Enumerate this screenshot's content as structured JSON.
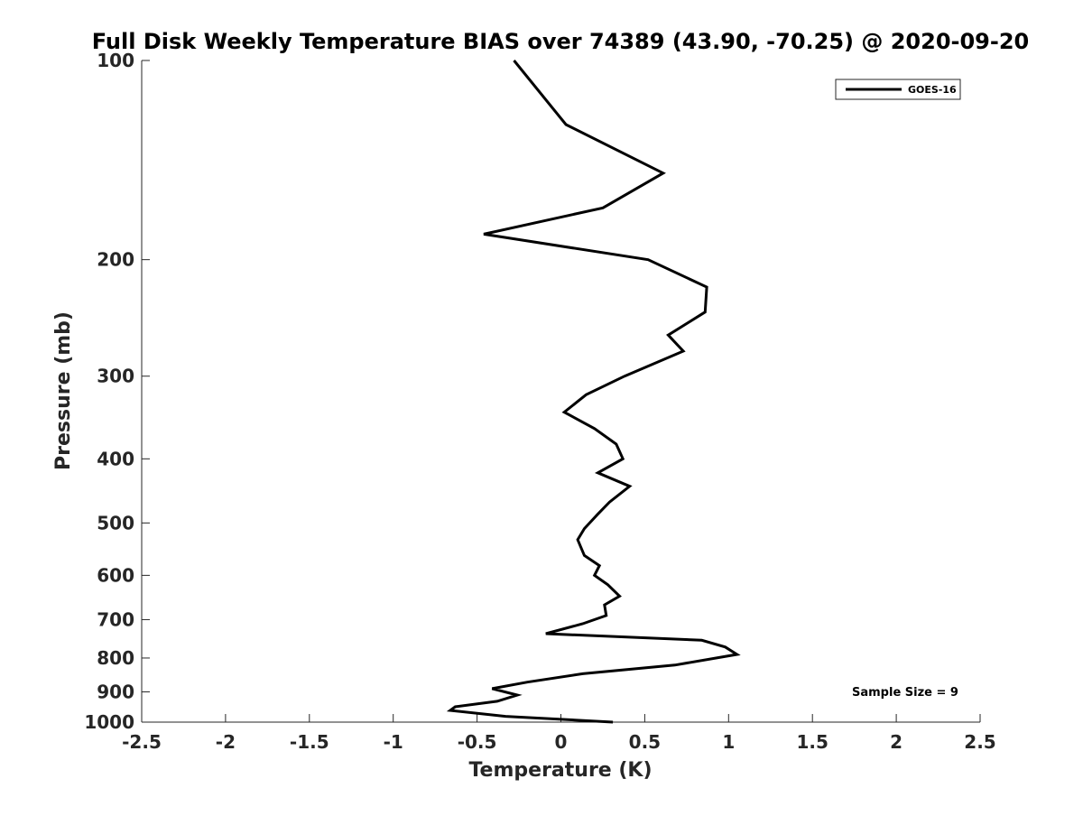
{
  "chart_data": {
    "type": "line",
    "title": "Full Disk Weekly Temperature BIAS over 74389 (43.90, -70.25) @ 2020-09-20",
    "xlabel": "Temperature (K)",
    "ylabel": "Pressure (mb)",
    "xlim": [
      -2.5,
      2.5
    ],
    "ylim": [
      100,
      1000
    ],
    "y_scale": "log",
    "y_reversed": true,
    "grid": false,
    "x_ticks": [
      -2.5,
      -2,
      -1.5,
      -1,
      -0.5,
      0,
      0.5,
      1,
      1.5,
      2,
      2.5
    ],
    "x_tick_labels": [
      "-2.5",
      "-2",
      "-1.5",
      "-1",
      "-0.5",
      "0",
      "0.5",
      "1",
      "1.5",
      "2",
      "2.5"
    ],
    "y_ticks": [
      100,
      200,
      300,
      400,
      500,
      600,
      700,
      800,
      900,
      1000
    ],
    "y_tick_labels": [
      "100",
      "200",
      "300",
      "400",
      "500",
      "600",
      "700",
      "800",
      "900",
      "1000"
    ],
    "legend": {
      "position": "top-right",
      "entries": [
        "GOES-16"
      ]
    },
    "annotation": "Sample Size = 9",
    "series": [
      {
        "name": "GOES-16",
        "color": "#000000",
        "points": [
          [
            -0.28,
            100
          ],
          [
            0.03,
            125
          ],
          [
            0.61,
            148
          ],
          [
            0.25,
            167
          ],
          [
            -0.46,
            183
          ],
          [
            0.52,
            200
          ],
          [
            0.87,
            220
          ],
          [
            0.86,
            240
          ],
          [
            0.64,
            260
          ],
          [
            0.73,
            275
          ],
          [
            0.38,
            300
          ],
          [
            0.15,
            320
          ],
          [
            0.02,
            340
          ],
          [
            0.2,
            360
          ],
          [
            0.33,
            380
          ],
          [
            0.37,
            400
          ],
          [
            0.22,
            420
          ],
          [
            0.41,
            440
          ],
          [
            0.29,
            465
          ],
          [
            0.22,
            485
          ],
          [
            0.14,
            510
          ],
          [
            0.1,
            530
          ],
          [
            0.14,
            560
          ],
          [
            0.23,
            580
          ],
          [
            0.2,
            600
          ],
          [
            0.28,
            620
          ],
          [
            0.35,
            645
          ],
          [
            0.26,
            665
          ],
          [
            0.27,
            690
          ],
          [
            0.13,
            710
          ],
          [
            -0.09,
            735
          ],
          [
            0.84,
            752
          ],
          [
            0.98,
            770
          ],
          [
            1.05,
            790
          ],
          [
            0.68,
            820
          ],
          [
            0.13,
            845
          ],
          [
            -0.2,
            870
          ],
          [
            -0.41,
            890
          ],
          [
            -0.26,
            910
          ],
          [
            -0.38,
            930
          ],
          [
            -0.63,
            948
          ],
          [
            -0.66,
            960
          ],
          [
            -0.33,
            980
          ],
          [
            0.31,
            1000
          ]
        ]
      }
    ]
  }
}
